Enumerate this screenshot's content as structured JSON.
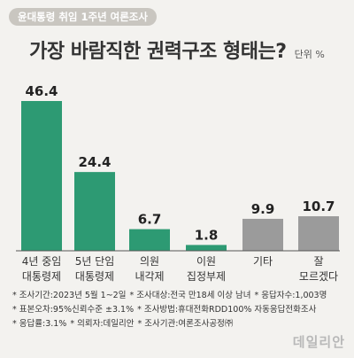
{
  "tag": "윤대통령 취임 1주년 여론조사",
  "title": "가장 바람직한 권력구조 형태는?",
  "unit": "단위 %",
  "colors": {
    "green": "#2d9a73",
    "gray": "#9b9b9b",
    "axis": "#555555"
  },
  "chart_data": {
    "type": "bar",
    "categories": [
      [
        "4년 중임",
        "대통령제"
      ],
      [
        "5년 단임",
        "대통령제"
      ],
      [
        "의원",
        "내각제"
      ],
      [
        "이원",
        "집정부제"
      ],
      [
        "기타"
      ],
      [
        "잘",
        "모르겠다"
      ]
    ],
    "values": [
      46.4,
      24.4,
      6.7,
      1.8,
      9.9,
      10.7
    ],
    "value_labels": [
      "46.4",
      "24.4",
      "6.7",
      "1.8",
      "9.9",
      "10.7"
    ],
    "bar_colors": [
      "green",
      "green",
      "green",
      "green",
      "gray",
      "gray"
    ],
    "ylim": [
      0,
      46.4
    ]
  },
  "footer": [
    [
      "조사기간:2023년 5월 1~2일",
      "조사대상:전국 만18세 이상 남녀",
      "응답자수:1,003명"
    ],
    [
      "표본오차:95%신뢰수준 ±3.1%",
      "조사방법:휴대전화RDD100% 자동응답전화조사"
    ],
    [
      "응답률:3.1%",
      "의뢰자:데일리안",
      "조사기관:여론조사공정㈜"
    ]
  ],
  "watermark": "데일리안"
}
